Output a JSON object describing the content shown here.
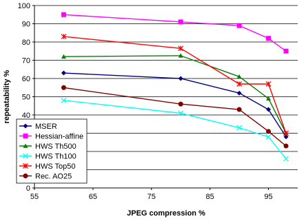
{
  "chart_data": {
    "type": "line",
    "title": "",
    "xlabel": "JPEG compression %",
    "ylabel": "repeatability %",
    "xlim": [
      55,
      100
    ],
    "ylim": [
      0,
      100
    ],
    "xticks": [
      55,
      65,
      75,
      85,
      95
    ],
    "yticks": [
      0,
      10,
      20,
      30,
      40,
      50,
      60,
      70,
      80,
      90,
      100
    ],
    "grid": "horizontal",
    "legend_position": "bottom-left",
    "series": [
      {
        "name": "MSER",
        "color": "#000080",
        "marker": "diamond",
        "x": [
          60,
          80,
          90,
          95,
          98
        ],
        "y": [
          63,
          60,
          52,
          43,
          28
        ]
      },
      {
        "name": "Hessian-affine",
        "color": "#ff00ff",
        "marker": "square",
        "x": [
          60,
          80,
          90,
          95,
          98
        ],
        "y": [
          95,
          91,
          89,
          82,
          75
        ]
      },
      {
        "name": "HWS Th500",
        "color": "#008000",
        "marker": "triangle",
        "x": [
          60,
          80,
          90,
          95,
          98
        ],
        "y": [
          72,
          72.5,
          61,
          49,
          30
        ]
      },
      {
        "name": "HWS Th100",
        "color": "#00ffff",
        "marker": "x",
        "x": [
          60,
          80,
          90,
          95,
          98
        ],
        "y": [
          48,
          41,
          33,
          28,
          16
        ]
      },
      {
        "name": "HWS Top50",
        "color": "#ff0000",
        "marker": "star",
        "x": [
          60,
          80,
          90,
          95,
          98
        ],
        "y": [
          83,
          76.5,
          57,
          57,
          30
        ]
      },
      {
        "name": "Rec. AO25",
        "color": "#800000",
        "marker": "circle",
        "x": [
          60,
          80,
          90,
          95,
          98
        ],
        "y": [
          55,
          46,
          43,
          31,
          23
        ]
      }
    ]
  }
}
